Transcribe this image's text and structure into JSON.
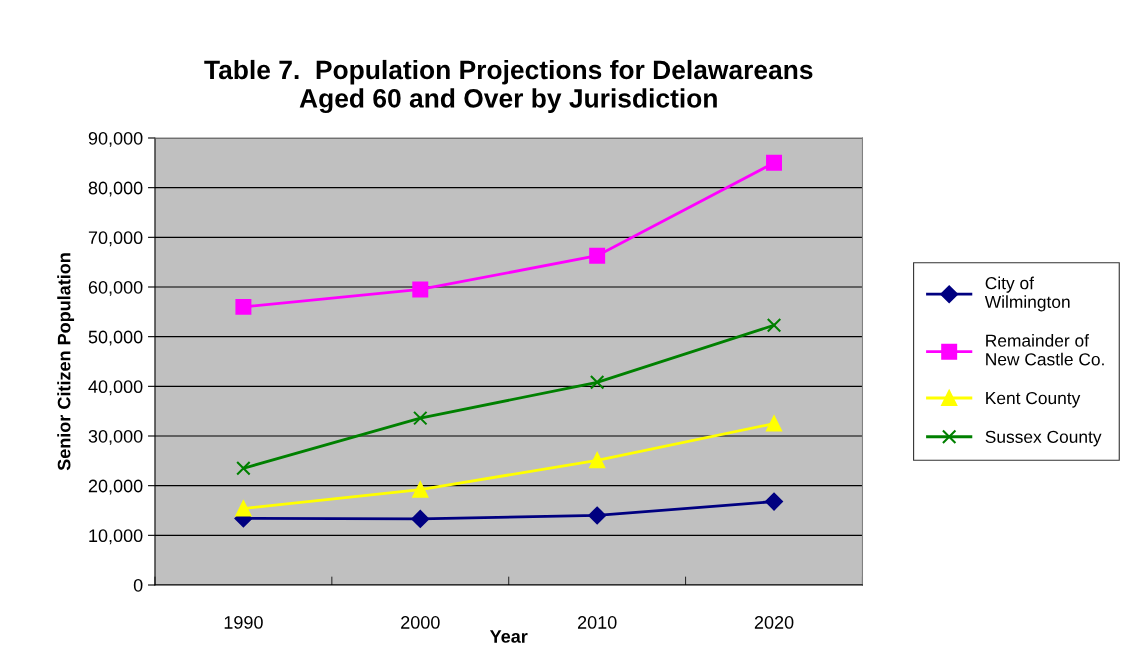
{
  "chart_data": {
    "type": "line",
    "title": "Table 7.  Population Projections for Delawareans\nAged 60 and Over by Jurisdiction",
    "xlabel": "Year",
    "ylabel": "Senior Citizen Population",
    "categories": [
      "1990",
      "2000",
      "2010",
      "2020"
    ],
    "series": [
      {
        "name": "City of\nWilmington",
        "color": "#000080",
        "marker": "diamond",
        "values": [
          13400,
          13300,
          14000,
          16800
        ]
      },
      {
        "name": "Remainder of\nNew Castle Co.",
        "color": "#ff00ff",
        "marker": "square",
        "values": [
          56000,
          59500,
          66300,
          85000
        ]
      },
      {
        "name": "Kent County",
        "color": "#ffff00",
        "marker": "triangle",
        "values": [
          15400,
          19200,
          25100,
          32500
        ]
      },
      {
        "name": "Sussex County",
        "color": "#008000",
        "marker": "cross",
        "values": [
          23500,
          33600,
          40800,
          52300
        ]
      }
    ],
    "ylim": [
      0,
      90000
    ],
    "yticks": [
      {
        "value": 0,
        "label": "0"
      },
      {
        "value": 10000,
        "label": "10,000"
      },
      {
        "value": 20000,
        "label": "20,000"
      },
      {
        "value": 30000,
        "label": "30,000"
      },
      {
        "value": 40000,
        "label": "40,000"
      },
      {
        "value": 50000,
        "label": "50,000"
      },
      {
        "value": 60000,
        "label": "60,000"
      },
      {
        "value": 70000,
        "label": "70,000"
      },
      {
        "value": 80000,
        "label": "80,000"
      },
      {
        "value": 90000,
        "label": "90,000"
      }
    ],
    "grid": "y",
    "legend": "right",
    "line_style": "solid"
  }
}
